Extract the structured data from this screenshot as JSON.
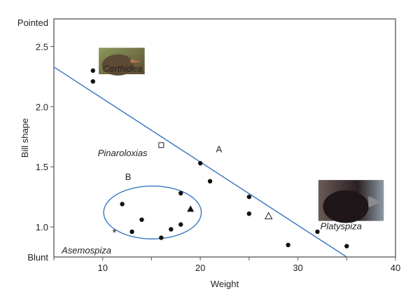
{
  "chart_data": {
    "type": "scatter",
    "xlabel": "Weight",
    "ylabel": "Bill shape",
    "xlim": [
      5,
      40
    ],
    "ylim": [
      0.75,
      2.73
    ],
    "xticks": [
      {
        "v": 10,
        "label": "10"
      },
      {
        "v": 20,
        "label": "20"
      },
      {
        "v": 30,
        "label": "30"
      },
      {
        "v": 40,
        "label": "40"
      }
    ],
    "xminor": [
      5,
      15,
      25,
      35
    ],
    "yticks": [
      {
        "v": 1.0,
        "label": "1.0"
      },
      {
        "v": 1.5,
        "label": "1.5"
      },
      {
        "v": 2.0,
        "label": "2.0"
      },
      {
        "v": 2.5,
        "label": "2.5"
      }
    ],
    "yend_labels": {
      "top": "Pointed",
      "bottom": "Blunt"
    },
    "grid": false,
    "points": [
      {
        "x": 9,
        "y": 2.3,
        "marker": "dot"
      },
      {
        "x": 9,
        "y": 2.21,
        "marker": "dot"
      },
      {
        "x": 20,
        "y": 1.53,
        "marker": "dot"
      },
      {
        "x": 21,
        "y": 1.38,
        "marker": "dot"
      },
      {
        "x": 12,
        "y": 1.19,
        "marker": "dot"
      },
      {
        "x": 18,
        "y": 1.28,
        "marker": "dot"
      },
      {
        "x": 14,
        "y": 1.06,
        "marker": "dot"
      },
      {
        "x": 13,
        "y": 0.96,
        "marker": "dot"
      },
      {
        "x": 16,
        "y": 0.91,
        "marker": "dot"
      },
      {
        "x": 17,
        "y": 0.98,
        "marker": "dot"
      },
      {
        "x": 18,
        "y": 1.02,
        "marker": "dot"
      },
      {
        "x": 25,
        "y": 1.25,
        "marker": "dot"
      },
      {
        "x": 25,
        "y": 1.11,
        "marker": "dot"
      },
      {
        "x": 29,
        "y": 0.85,
        "marker": "dot"
      },
      {
        "x": 32,
        "y": 0.96,
        "marker": "dot"
      },
      {
        "x": 35,
        "y": 0.84,
        "marker": "dot"
      },
      {
        "x": 16,
        "y": 1.68,
        "marker": "open-square"
      },
      {
        "x": 19,
        "y": 1.15,
        "marker": "filled-triangle"
      },
      {
        "x": 27,
        "y": 1.09,
        "marker": "open-triangle"
      },
      {
        "x": 11.2,
        "y": 0.96,
        "marker": "star"
      }
    ],
    "line": {
      "x1": 5,
      "y1": 2.33,
      "x2": 35,
      "y2": 0.75,
      "color": "#3a78c2"
    },
    "ellipse": {
      "cx": 15.1,
      "cy": 1.12,
      "rx": 5.0,
      "ry": 0.22,
      "color": "#3a78c2"
    },
    "annotations": [
      {
        "text": "A",
        "x": 21.6,
        "y": 1.62,
        "style": "normal"
      },
      {
        "text": "B",
        "x": 12.3,
        "y": 1.39,
        "style": "normal"
      },
      {
        "text": "Certhidea",
        "x": 10,
        "y": 2.29,
        "style": "italic"
      },
      {
        "text": "Pinaroloxias",
        "x": 9.5,
        "y": 1.59,
        "style": "italic"
      },
      {
        "text": "Asemospiza",
        "x": 5.8,
        "y": 0.78,
        "style": "italic"
      },
      {
        "text": "Platyspiza",
        "x": 32.3,
        "y": 0.98,
        "style": "italic"
      }
    ],
    "images": [
      {
        "name": "certhidea-bird-photo",
        "x": 9.6,
        "y0": 2.27,
        "x1": 14.3,
        "y1": 2.49
      },
      {
        "name": "platyspiza-bird-photo",
        "x": 32.1,
        "y0": 1.05,
        "x1": 38.8,
        "y1": 1.39
      }
    ]
  }
}
